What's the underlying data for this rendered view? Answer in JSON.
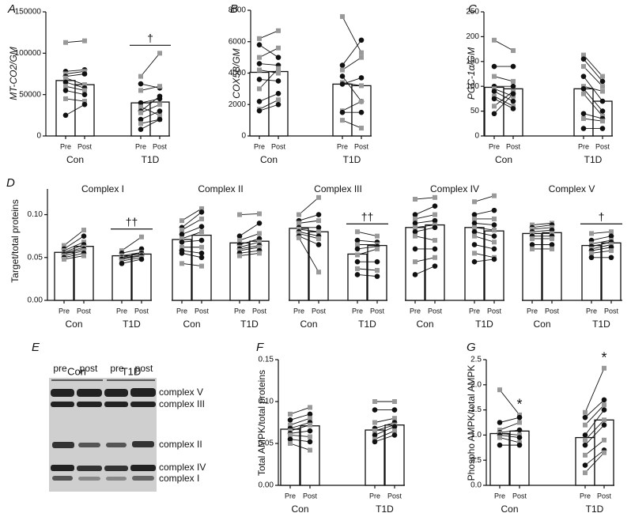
{
  "chart_data": [
    {
      "type": "paired-bar",
      "letter": "A",
      "ylabel": "MT-CO2/GM",
      "ylabel_italic": true,
      "ylim": [
        0,
        150000
      ],
      "yticks": [
        0,
        50000,
        100000,
        150000
      ],
      "conditions": [
        "Pre",
        "Post"
      ],
      "marker_colors": [
        "#999999",
        "#111111"
      ],
      "groups": [
        {
          "name": "Con",
          "values": [
            67000,
            62000
          ],
          "pre": [
            113000,
            78000,
            75000,
            72000,
            70000,
            65000,
            60000,
            55000,
            45000,
            25000
          ],
          "post": [
            115000,
            80000,
            78000,
            75000,
            62000,
            58000,
            55000,
            50000,
            42000,
            38000
          ]
        },
        {
          "name": "T1D",
          "values": [
            40000,
            41000
          ],
          "pre": [
            72000,
            63000,
            55000,
            40000,
            35000,
            30000,
            28000,
            20000,
            15000,
            8000
          ],
          "post": [
            100000,
            58000,
            60000,
            45000,
            25000,
            48000,
            38000,
            30000,
            20000,
            20000
          ],
          "annotations": [
            {
              "text": "†",
              "bracket": true
            }
          ]
        }
      ]
    },
    {
      "type": "paired-bar",
      "letter": "B",
      "ylabel": "COX5B/GM",
      "ylabel_italic": true,
      "ylim": [
        0,
        8000
      ],
      "yticks": [
        0,
        2000,
        4000,
        6000,
        8000
      ],
      "conditions": [
        "Pre",
        "Post"
      ],
      "marker_colors": [
        "#999999",
        "#111111"
      ],
      "groups": [
        {
          "name": "Con",
          "values": [
            4050,
            4100
          ],
          "pre": [
            6200,
            5800,
            5000,
            4600,
            4200,
            3600,
            3000,
            2200,
            1700,
            1600
          ],
          "post": [
            6700,
            5000,
            5600,
            4500,
            4000,
            3500,
            4300,
            2700,
            2300,
            2000
          ]
        },
        {
          "name": "T1D",
          "values": [
            3300,
            3200
          ],
          "pre": [
            7600,
            4500,
            4200,
            3800,
            3400,
            3300,
            1600,
            1500,
            1000
          ],
          "post": [
            5300,
            6100,
            5000,
            2200,
            3200,
            3700,
            2200,
            1500,
            500
          ]
        }
      ]
    },
    {
      "type": "paired-bar",
      "letter": "C",
      "ylabel": "PGC-1α/GM",
      "ylabel_italic": true,
      "ylim": [
        0,
        250
      ],
      "yticks": [
        0,
        50,
        100,
        150,
        200,
        250
      ],
      "conditions": [
        "Pre",
        "Post"
      ],
      "marker_colors": [
        "#999999",
        "#111111"
      ],
      "groups": [
        {
          "name": "Con",
          "values": [
            98,
            95
          ],
          "pre": [
            193,
            140,
            120,
            100,
            95,
            90,
            80,
            75,
            60,
            45
          ],
          "post": [
            172,
            140,
            110,
            100,
            80,
            70,
            60,
            55,
            90,
            85
          ]
        },
        {
          "name": "T1D",
          "values": [
            95,
            70
          ],
          "pre": [
            163,
            155,
            140,
            120,
            100,
            95,
            85,
            45,
            35,
            15
          ],
          "post": [
            120,
            110,
            100,
            70,
            90,
            50,
            40,
            35,
            30,
            15
          ]
        }
      ]
    },
    {
      "type": "paired-bar",
      "letter": "D",
      "title": "Complex I",
      "ylabel": "Target/total proteins",
      "ylim": [
        0,
        0.13
      ],
      "yticks": [
        {
          "value": 0,
          "label": "0.00"
        },
        {
          "value": 0.05,
          "label": "0.05"
        },
        {
          "value": 0.1,
          "label": "0.10"
        }
      ],
      "conditions": [
        "Pre",
        "Post"
      ],
      "marker_colors": [
        "#999999",
        "#111111"
      ],
      "groups": [
        {
          "name": "Con",
          "values": [
            0.056,
            0.063
          ],
          "pre": [
            0.064,
            0.06,
            0.058,
            0.056,
            0.055,
            0.054,
            0.052,
            0.05,
            0.048
          ],
          "post": [
            0.082,
            0.075,
            0.068,
            0.065,
            0.062,
            0.06,
            0.058,
            0.055,
            0.052
          ]
        },
        {
          "name": "T1D",
          "values": [
            0.052,
            0.054
          ],
          "pre": [
            0.058,
            0.055,
            0.052,
            0.05,
            0.049,
            0.048,
            0.046,
            0.043
          ],
          "post": [
            0.074,
            0.06,
            0.056,
            0.055,
            0.053,
            0.052,
            0.05,
            0.048
          ],
          "annotations": [
            {
              "text": "††",
              "bracket": true
            }
          ]
        }
      ]
    },
    {
      "type": "paired-bar",
      "title": "Complex II",
      "ylim": [
        0,
        0.13
      ],
      "conditions": [
        "Pre",
        "Post"
      ],
      "marker_colors": [
        "#999999",
        "#111111"
      ],
      "groups": [
        {
          "name": "Con",
          "values": [
            0.071,
            0.076
          ],
          "pre": [
            0.093,
            0.085,
            0.082,
            0.077,
            0.072,
            0.068,
            0.062,
            0.055,
            0.043,
            0.058
          ],
          "post": [
            0.107,
            0.103,
            0.095,
            0.086,
            0.08,
            0.07,
            0.062,
            0.05,
            0.04,
            0.055
          ]
        },
        {
          "name": "T1D",
          "values": [
            0.067,
            0.069
          ],
          "pre": [
            0.1,
            0.075,
            0.07,
            0.065,
            0.062,
            0.06,
            0.058,
            0.055,
            0.052
          ],
          "post": [
            0.101,
            0.09,
            0.078,
            0.072,
            0.068,
            0.064,
            0.062,
            0.058,
            0.055
          ]
        }
      ]
    },
    {
      "type": "paired-bar",
      "title": "Complex III",
      "ylim": [
        0,
        0.13
      ],
      "conditions": [
        "Pre",
        "Post"
      ],
      "marker_colors": [
        "#999999",
        "#111111"
      ],
      "groups": [
        {
          "name": "Con",
          "values": [
            0.084,
            0.08
          ],
          "pre": [
            0.1,
            0.093,
            0.09,
            0.085,
            0.083,
            0.08,
            0.078,
            0.075,
            0.073
          ],
          "post": [
            0.12,
            0.1,
            0.093,
            0.085,
            0.08,
            0.075,
            0.072,
            0.065,
            0.033
          ]
        },
        {
          "name": "T1D",
          "values": [
            0.054,
            0.064
          ],
          "pre": [
            0.08,
            0.07,
            0.065,
            0.06,
            0.053,
            0.045,
            0.037,
            0.03
          ],
          "post": [
            0.075,
            0.068,
            0.065,
            0.063,
            0.06,
            0.045,
            0.035,
            0.028
          ],
          "annotations": [
            {
              "text": "††",
              "bracket": true
            }
          ]
        }
      ]
    },
    {
      "type": "paired-bar",
      "title": "Complex IV",
      "ylim": [
        0,
        0.13
      ],
      "conditions": [
        "Pre",
        "Post"
      ],
      "marker_colors": [
        "#999999",
        "#111111"
      ],
      "groups": [
        {
          "name": "Con",
          "values": [
            0.085,
            0.088
          ],
          "pre": [
            0.118,
            0.1,
            0.095,
            0.09,
            0.085,
            0.08,
            0.075,
            0.06,
            0.045,
            0.03
          ],
          "post": [
            0.12,
            0.11,
            0.1,
            0.093,
            0.088,
            0.085,
            0.07,
            0.06,
            0.05,
            0.04
          ]
        },
        {
          "name": "T1D",
          "values": [
            0.085,
            0.081
          ],
          "pre": [
            0.115,
            0.1,
            0.095,
            0.09,
            0.085,
            0.08,
            0.075,
            0.065,
            0.055,
            0.045
          ],
          "post": [
            0.122,
            0.105,
            0.095,
            0.088,
            0.082,
            0.075,
            0.068,
            0.06,
            0.05,
            0.048
          ]
        }
      ]
    },
    {
      "type": "paired-bar",
      "title": "Complex V",
      "ylim": [
        0,
        0.13
      ],
      "conditions": [
        "Pre",
        "Post"
      ],
      "marker_colors": [
        "#999999",
        "#111111"
      ],
      "groups": [
        {
          "name": "Con",
          "values": [
            0.078,
            0.079
          ],
          "pre": [
            0.088,
            0.085,
            0.083,
            0.08,
            0.078,
            0.075,
            0.072,
            0.065,
            0.06
          ],
          "post": [
            0.09,
            0.088,
            0.085,
            0.082,
            0.078,
            0.075,
            0.072,
            0.065,
            0.06
          ]
        },
        {
          "name": "T1D",
          "values": [
            0.064,
            0.067
          ],
          "pre": [
            0.078,
            0.07,
            0.066,
            0.063,
            0.06,
            0.058,
            0.055,
            0.05
          ],
          "post": [
            0.08,
            0.075,
            0.07,
            0.068,
            0.065,
            0.062,
            0.058,
            0.05
          ],
          "annotations": [
            {
              "text": "†",
              "bracket": true
            }
          ]
        }
      ]
    },
    {
      "type": "paired-bar",
      "letter": "F",
      "ylabel": "Total AMPK/total proteins",
      "ylim": [
        0,
        0.15
      ],
      "yticks": [
        {
          "value": 0,
          "label": "0.00"
        },
        0.05,
        {
          "value": 0.1,
          "label": "0.10"
        },
        0.15
      ],
      "conditions": [
        "Pre",
        "Post"
      ],
      "marker_colors": [
        "#999999",
        "#111111"
      ],
      "groups": [
        {
          "name": "Con",
          "values": [
            0.067,
            0.071
          ],
          "pre": [
            0.085,
            0.078,
            0.072,
            0.068,
            0.065,
            0.062,
            0.06,
            0.055,
            0.05
          ],
          "post": [
            0.093,
            0.085,
            0.08,
            0.075,
            0.072,
            0.065,
            0.058,
            0.052,
            0.042
          ]
        },
        {
          "name": "T1D",
          "values": [
            0.066,
            0.072
          ],
          "pre": [
            0.1,
            0.09,
            0.075,
            0.068,
            0.065,
            0.06,
            0.055,
            0.052
          ],
          "post": [
            0.1,
            0.09,
            0.08,
            0.075,
            0.072,
            0.07,
            0.065,
            0.06
          ]
        }
      ]
    },
    {
      "type": "paired-bar",
      "letter": "G",
      "ylabel": "Phospho AMPK/total AMPK",
      "ylim": [
        0,
        2.5
      ],
      "yticks": [
        {
          "value": 0,
          "label": "0.0"
        },
        0.5,
        {
          "value": 1,
          "label": "1.0"
        },
        1.5,
        {
          "value": 2,
          "label": "2.0"
        },
        2.5
      ],
      "conditions": [
        "Pre",
        "Post"
      ],
      "marker_colors": [
        "#999999",
        "#111111"
      ],
      "groups": [
        {
          "name": "Con",
          "values": [
            1.03,
            1.08
          ],
          "pre": [
            1.9,
            1.25,
            1.1,
            1.05,
            1.03,
            1.0,
            0.95,
            0.8
          ],
          "post": [
            1.4,
            1.35,
            1.25,
            1.1,
            1.0,
            0.95,
            0.85,
            0.8
          ],
          "annotations": [
            {
              "text": "*",
              "condition": 1
            }
          ]
        },
        {
          "name": "T1D",
          "values": [
            0.95,
            1.3
          ],
          "pre": [
            1.45,
            1.35,
            1.2,
            1.0,
            0.9,
            0.8,
            0.6,
            0.4,
            0.25
          ],
          "post": [
            2.33,
            1.7,
            1.6,
            1.5,
            1.3,
            1.2,
            0.9,
            0.7,
            0.65
          ],
          "annotations": [
            {
              "text": "*",
              "condition": 1
            }
          ]
        }
      ]
    }
  ],
  "blot": {
    "letter": "E",
    "groups": [
      "Con",
      "T1D"
    ],
    "lanes": [
      "pre",
      "post",
      "pre",
      "post"
    ],
    "bands": [
      "complex V",
      "complex III",
      "complex II",
      "complex IV",
      "complex I"
    ]
  }
}
